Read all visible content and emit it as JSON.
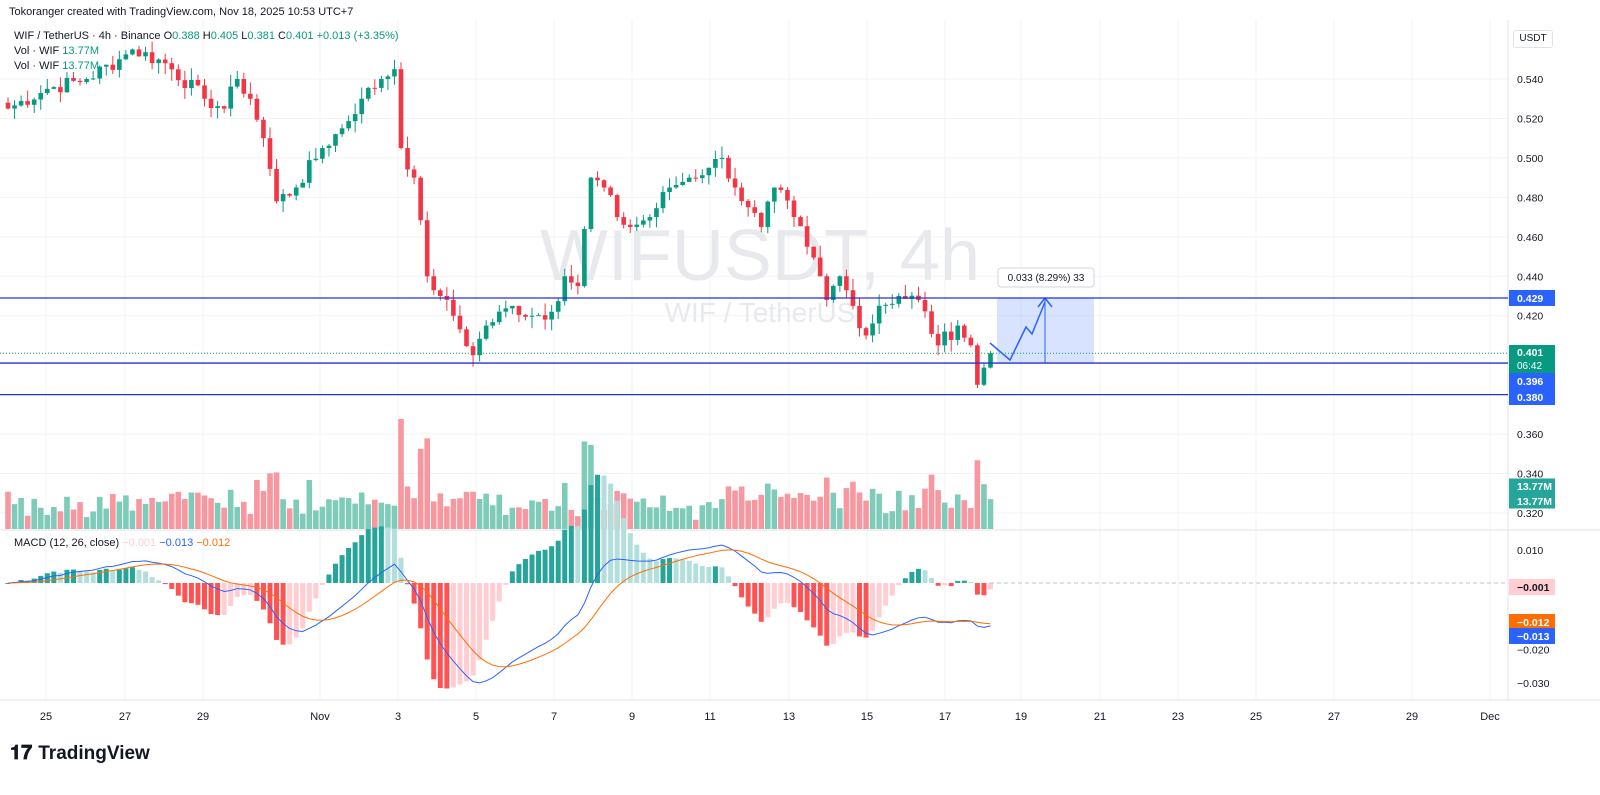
{
  "credit": "Tokoranger created with TradingView.com, Nov 18, 2025 10:53 UTC+7",
  "legend": {
    "symbol": "WIF / TetherUS · 4h · Binance",
    "o_label": "O",
    "o": "0.388",
    "h_label": "H",
    "h": "0.405",
    "l_label": "L",
    "l": "0.381",
    "c_label": "C",
    "c": "0.401",
    "change": "+0.013 (+3.35%)",
    "vol1_label": "Vol · WIF",
    "vol1": "13.77M",
    "vol2_label": "Vol · WIF",
    "vol2": "13.77M",
    "macd_label": "MACD (12, 26, close)",
    "macd_hist": "−0.001",
    "macd_line": "−0.013",
    "macd_signal": "−0.012"
  },
  "currency": "USDT",
  "watermark": {
    "main": "WIFUSDT, 4h",
    "sub": "WIF / TetherUS"
  },
  "colors": {
    "up": "#089981",
    "down": "#f23645",
    "line": "#2432d8",
    "macd": "#2962ff",
    "signal": "#ff6d00"
  },
  "levels": [
    {
      "price": 0.429,
      "label": "0.429"
    },
    {
      "price": 0.396,
      "label": "0.396"
    },
    {
      "price": 0.38,
      "label": "0.380"
    }
  ],
  "last_price": {
    "label": "0.401",
    "countdown": "06:42",
    "price": 0.401
  },
  "projection": {
    "label": "0.033 (8.29%) 33",
    "from": 0.396,
    "to": 0.429
  },
  "volume_labels": [
    "13.77M",
    "13.77M"
  ],
  "macd_axis_labels": {
    "hist": "−0.001",
    "signal": "−0.012",
    "macd": "−0.013"
  },
  "logo": "TradingView",
  "chart_data": {
    "type": "candlestick",
    "timeframe": "4h",
    "price_ticks": [
      "0.540",
      "0.520",
      "0.500",
      "0.480",
      "0.460",
      "0.440",
      "0.420",
      "0.360",
      "0.340",
      "0.320"
    ],
    "price_tick_values": [
      0.54,
      0.52,
      0.5,
      0.48,
      0.46,
      0.44,
      0.42,
      0.36,
      0.34,
      0.32
    ],
    "macd_ticks": [
      "0.010",
      "−0.020",
      "−0.030"
    ],
    "macd_tick_values": [
      0.01,
      -0.02,
      -0.03
    ],
    "x_labels": [
      "25",
      "27",
      "29",
      "Nov",
      "3",
      "5",
      "7",
      "9",
      "11",
      "13",
      "15",
      "17",
      "19",
      "21",
      "23",
      "25",
      "27",
      "29",
      "Dec"
    ],
    "close_keypoints": [
      [
        0,
        0.525
      ],
      [
        6,
        0.535
      ],
      [
        12,
        0.54
      ],
      [
        17,
        0.55
      ],
      [
        19,
        0.555
      ],
      [
        24,
        0.548
      ],
      [
        30,
        0.53
      ],
      [
        33,
        0.525
      ],
      [
        35,
        0.54
      ],
      [
        37,
        0.53
      ],
      [
        39,
        0.51
      ],
      [
        41,
        0.478
      ],
      [
        44,
        0.485
      ],
      [
        48,
        0.505
      ],
      [
        51,
        0.515
      ],
      [
        54,
        0.53
      ],
      [
        57,
        0.54
      ],
      [
        59,
        0.545
      ],
      [
        60,
        0.505
      ],
      [
        62,
        0.49
      ],
      [
        64,
        0.44
      ],
      [
        66,
        0.43
      ],
      [
        68,
        0.42
      ],
      [
        71,
        0.4
      ],
      [
        73,
        0.415
      ],
      [
        77,
        0.425
      ],
      [
        80,
        0.42
      ],
      [
        83,
        0.422
      ],
      [
        85,
        0.44
      ],
      [
        87,
        0.435
      ],
      [
        89,
        0.49
      ],
      [
        91,
        0.485
      ],
      [
        93,
        0.47
      ],
      [
        95,
        0.465
      ],
      [
        98,
        0.47
      ],
      [
        101,
        0.485
      ],
      [
        104,
        0.49
      ],
      [
        107,
        0.495
      ],
      [
        109,
        0.5
      ],
      [
        111,
        0.485
      ],
      [
        113,
        0.475
      ],
      [
        115,
        0.465
      ],
      [
        117,
        0.485
      ],
      [
        120,
        0.47
      ],
      [
        122,
        0.455
      ],
      [
        124,
        0.44
      ],
      [
        125,
        0.428
      ],
      [
        127,
        0.44
      ],
      [
        129,
        0.425
      ],
      [
        131,
        0.41
      ],
      [
        133,
        0.425
      ],
      [
        136,
        0.43
      ],
      [
        139,
        0.428
      ],
      [
        142,
        0.405
      ],
      [
        145,
        0.415
      ],
      [
        147,
        0.405
      ],
      [
        148,
        0.385
      ],
      [
        150,
        0.401
      ]
    ]
  }
}
